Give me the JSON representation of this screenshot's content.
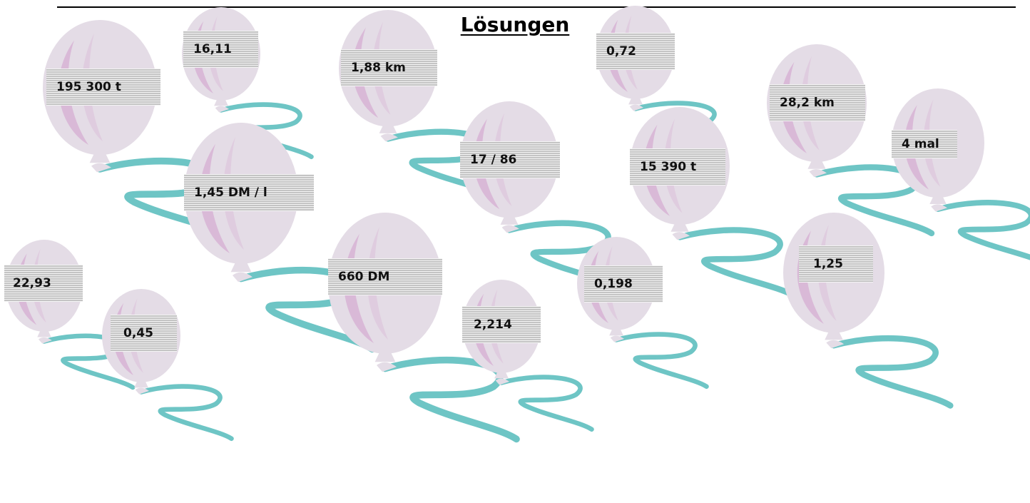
{
  "heading": {
    "title": "Lösungen"
  },
  "colors": {
    "balloon": "#e4dce6",
    "shine": "#d6aed2",
    "ribbon": "#6ec5c5",
    "label": "#d4d4d4"
  },
  "answers": [
    "195 300 t",
    "16,11",
    "1,45 DM / l",
    "1,88 km",
    "17 / 86",
    "0,72",
    "15 390 t",
    "28,2 km",
    "4 mal",
    "22,93",
    "0,45",
    "660 DM",
    "2,214",
    "0,198",
    "1,25"
  ]
}
